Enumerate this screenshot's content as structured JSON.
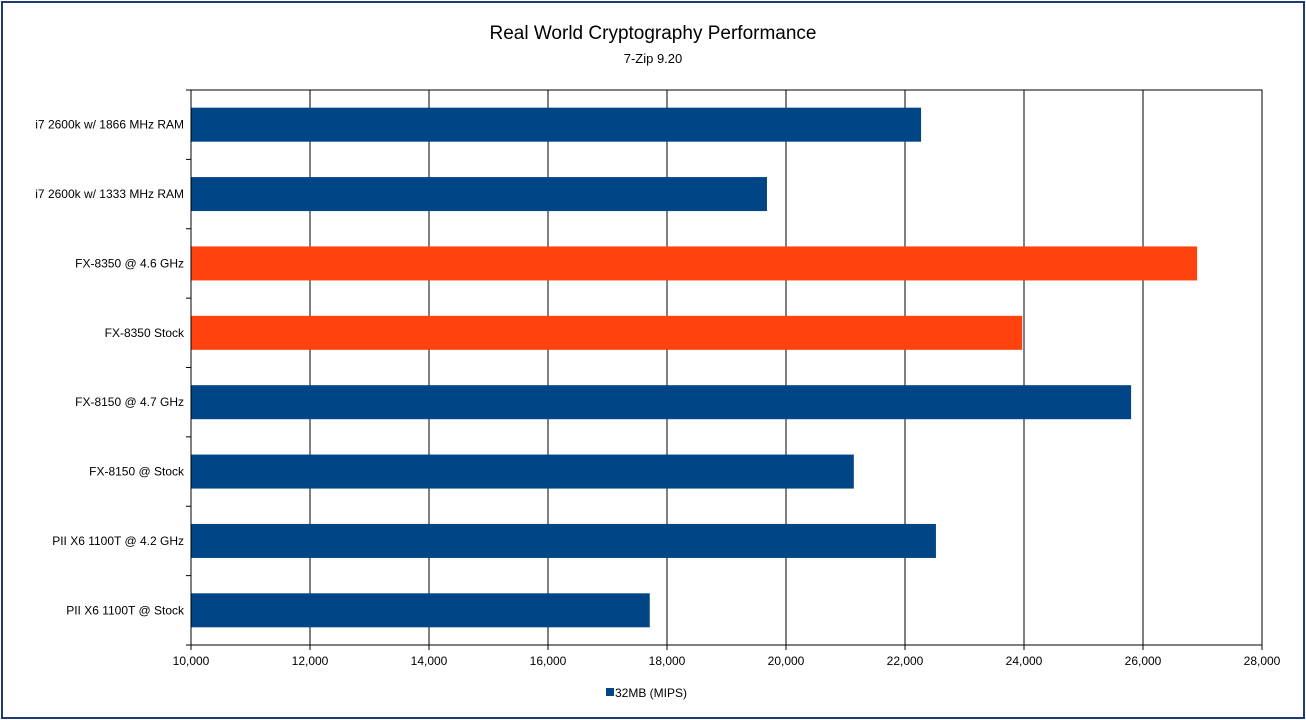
{
  "chart_data": {
    "type": "bar",
    "orientation": "horizontal",
    "title": "Real World Cryptography Performance",
    "subtitle": "7-Zip 9.20",
    "xlabel": "",
    "ylabel": "",
    "xlim": [
      10000,
      28000
    ],
    "xticks": [
      10000,
      12000,
      14000,
      16000,
      18000,
      20000,
      22000,
      24000,
      26000,
      28000
    ],
    "xtick_labels": [
      "10,000",
      "12,000",
      "14,000",
      "16,000",
      "18,000",
      "20,000",
      "22,000",
      "24,000",
      "26,000",
      "28,000"
    ],
    "grid": "vertical",
    "categories": [
      "i7 2600k w/ 1866 MHz RAM",
      "i7 2600k w/ 1333 MHz RAM",
      "FX-8350 @ 4.6 GHz",
      "FX-8350 Stock",
      "FX-8150 @ 4.7 GHz",
      "FX-8150 @ Stock",
      "PII X6 1100T @ 4.2 GHz",
      "PII X6 1100T @ Stock"
    ],
    "series": [
      {
        "name": "32MB (MIPS)",
        "values": [
          22270,
          19680,
          26910,
          23970,
          25800,
          21140,
          22520,
          17710
        ]
      }
    ],
    "bar_colors": [
      "#004586",
      "#004586",
      "#ff420e",
      "#ff420e",
      "#004586",
      "#004586",
      "#004586",
      "#004586"
    ],
    "legend": {
      "label": "32MB (MIPS)",
      "color": "#004586",
      "placement": "bottom"
    }
  }
}
